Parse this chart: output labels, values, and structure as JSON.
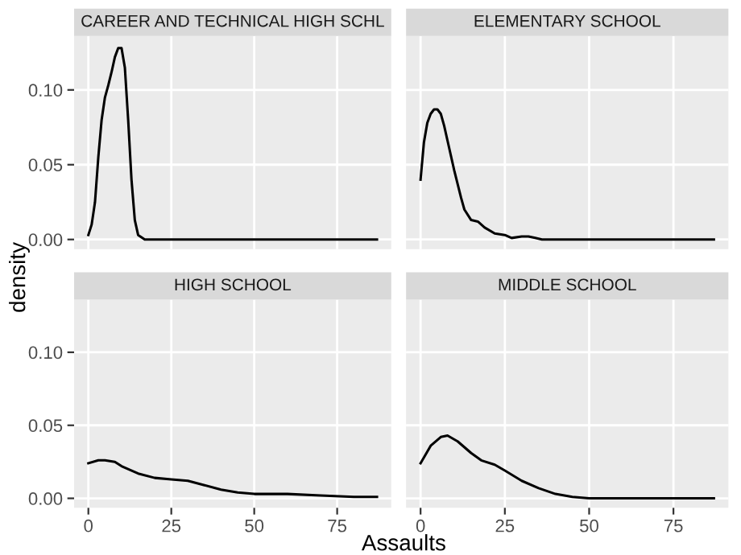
{
  "chart_data": [
    {
      "type": "line",
      "title": "CAREER AND TECHNICAL HIGH SCHL",
      "ylabel": "density",
      "xlabel": "Assaults",
      "xlim": [
        -4.3,
        91.3
      ],
      "ylim": [
        -0.0065,
        0.136
      ],
      "xticks": [
        {
          "value": 0,
          "label": null
        },
        {
          "value": 25,
          "label": null
        },
        {
          "value": 50,
          "label": null
        },
        {
          "value": 75,
          "label": null
        }
      ],
      "yticks": [
        {
          "value": 0,
          "label": "0.00"
        },
        {
          "value": 0.05,
          "label": "0.05"
        },
        {
          "value": 0.1,
          "label": "0.10"
        }
      ],
      "grid": true,
      "tick_labels": "y",
      "series": [
        {
          "color": "#000000",
          "x": [
            0,
            1,
            2,
            3,
            4,
            5,
            6,
            7,
            8,
            9,
            10,
            11,
            12,
            13,
            14,
            15,
            17,
            20,
            87
          ],
          "values": [
            0.003,
            0.01,
            0.025,
            0.055,
            0.08,
            0.095,
            0.103,
            0.112,
            0.122,
            0.128,
            0.128,
            0.115,
            0.08,
            0.04,
            0.013,
            0.003,
            0.0,
            0.0,
            0.0
          ]
        }
      ]
    },
    {
      "type": "line",
      "title": "ELEMENTARY SCHOOL",
      "xlim": [
        -4.3,
        91.3
      ],
      "ylim": [
        -0.0065,
        0.136
      ],
      "xticks": [
        {
          "value": 0,
          "label": null
        },
        {
          "value": 25,
          "label": null
        },
        {
          "value": 50,
          "label": null
        },
        {
          "value": 75,
          "label": null
        }
      ],
      "yticks": [
        {
          "value": 0,
          "label": null
        },
        {
          "value": 0.05,
          "label": null
        },
        {
          "value": 0.1,
          "label": null
        }
      ],
      "grid": true,
      "tick_labels": false,
      "series": [
        {
          "color": "#000000",
          "x": [
            0,
            1,
            2,
            3,
            4,
            5,
            6,
            7,
            8,
            10,
            12,
            13,
            15,
            17,
            19,
            22,
            25,
            27,
            30,
            32,
            34,
            36,
            40,
            87
          ],
          "values": [
            0.04,
            0.065,
            0.078,
            0.084,
            0.087,
            0.087,
            0.084,
            0.076,
            0.066,
            0.046,
            0.028,
            0.02,
            0.013,
            0.012,
            0.008,
            0.004,
            0.003,
            0.001,
            0.002,
            0.002,
            0.001,
            0.0,
            0.0,
            0.0
          ]
        }
      ]
    },
    {
      "type": "line",
      "title": "HIGH SCHOOL",
      "xlim": [
        -4.3,
        91.3
      ],
      "ylim": [
        -0.0065,
        0.136
      ],
      "xticks": [
        0,
        25,
        50,
        75
      ],
      "yticks": [
        {
          "value": 0,
          "label": "0.00"
        },
        {
          "value": 0.05,
          "label": "0.05"
        },
        {
          "value": 0.1,
          "label": "0.10"
        }
      ],
      "grid": true,
      "series": [
        {
          "color": "#000000",
          "x": [
            0,
            3,
            5,
            8,
            10,
            15,
            20,
            25,
            30,
            35,
            40,
            45,
            50,
            60,
            70,
            80,
            87
          ],
          "values": [
            0.024,
            0.026,
            0.026,
            0.025,
            0.022,
            0.017,
            0.014,
            0.013,
            0.012,
            0.009,
            0.006,
            0.004,
            0.003,
            0.003,
            0.002,
            0.001,
            0.001
          ]
        }
      ]
    },
    {
      "type": "line",
      "title": "MIDDLE SCHOOL",
      "xlim": [
        -4.3,
        91.3
      ],
      "ylim": [
        -0.0065,
        0.136
      ],
      "xticks": [
        0,
        25,
        50,
        75
      ],
      "yticks": [
        {
          "value": 0,
          "label": null
        },
        {
          "value": 0.05,
          "label": null
        },
        {
          "value": 0.1,
          "label": null
        }
      ],
      "grid": true,
      "tick_labels": "x",
      "series": [
        {
          "color": "#000000",
          "x": [
            0,
            3,
            6,
            8,
            11,
            15,
            18,
            22,
            25,
            30,
            35,
            40,
            45,
            50,
            87
          ],
          "values": [
            0.024,
            0.036,
            0.042,
            0.043,
            0.039,
            0.031,
            0.026,
            0.023,
            0.019,
            0.012,
            0.007,
            0.003,
            0.001,
            0.0,
            0.0
          ]
        }
      ]
    }
  ]
}
